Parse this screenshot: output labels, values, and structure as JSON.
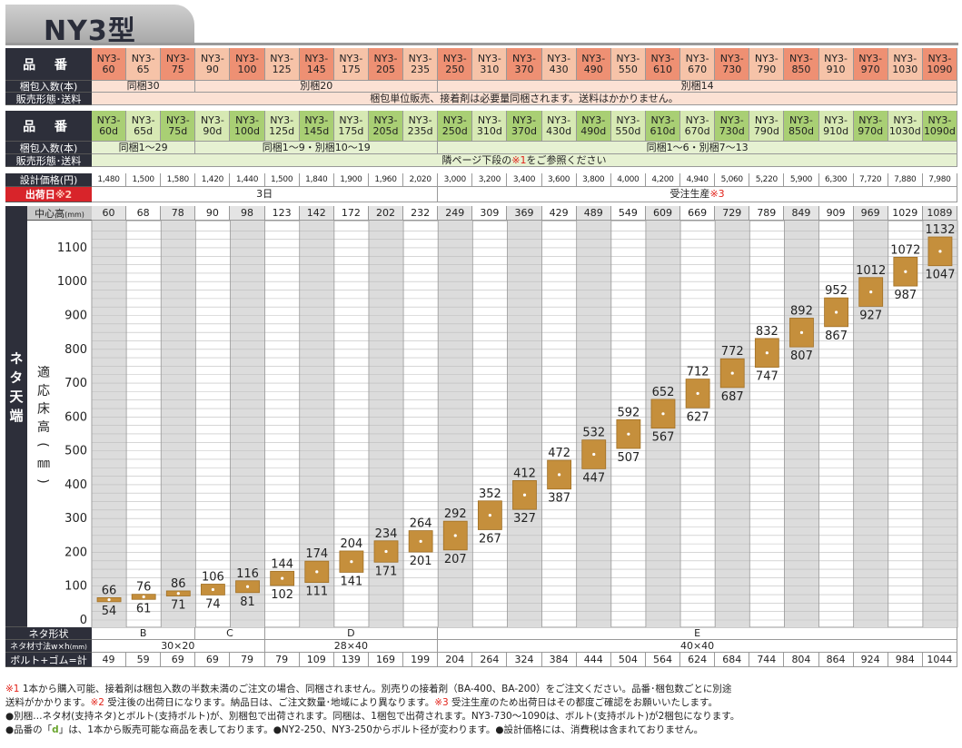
{
  "title": "NY3型",
  "labels": {
    "part_no": "品 番",
    "pack_qty": "梱包入数(本)",
    "sales_form": "販売形態･送料",
    "price": "設計価格(円)",
    "ship_day": "出荷日",
    "ship_day_mark": "※2",
    "center_height": "中心高",
    "center_height_unit": "(mm)",
    "side_label": "ネタ天端",
    "axis_label": "適応床高(㎜)",
    "neta_shape": "ネタ形状",
    "neta_size": "ネタ材寸法w×h",
    "neta_size_unit": "(mm)",
    "bolt_total": "ボルト+ゴム=計"
  },
  "columns": [
    {
      "name1": "NY3-",
      "name2": "60",
      "named": "NY3-60d",
      "hl": true,
      "price": "1,480",
      "ch": "60",
      "bt": "49"
    },
    {
      "name1": "NY3-",
      "name2": "65",
      "named": "NY3-65d",
      "hl": false,
      "price": "1,500",
      "ch": "68",
      "bt": "59"
    },
    {
      "name1": "NY3-",
      "name2": "75",
      "named": "NY3-75d",
      "hl": true,
      "price": "1,580",
      "ch": "78",
      "bt": "69"
    },
    {
      "name1": "NY3-",
      "name2": "90",
      "named": "NY3-90d",
      "hl": false,
      "price": "1,420",
      "ch": "90",
      "bt": "69"
    },
    {
      "name1": "NY3-",
      "name2": "100",
      "named": "NY3-100d",
      "hl": true,
      "price": "1,440",
      "ch": "98",
      "bt": "79"
    },
    {
      "name1": "NY3-",
      "name2": "125",
      "named": "NY3-125d",
      "hl": false,
      "price": "1,500",
      "ch": "123",
      "bt": "79"
    },
    {
      "name1": "NY3-",
      "name2": "145",
      "named": "NY3-145d",
      "hl": true,
      "price": "1,840",
      "ch": "142",
      "bt": "109"
    },
    {
      "name1": "NY3-",
      "name2": "175",
      "named": "NY3-175d",
      "hl": false,
      "price": "1,900",
      "ch": "172",
      "bt": "139"
    },
    {
      "name1": "NY3-",
      "name2": "205",
      "named": "NY3-205d",
      "hl": true,
      "price": "1,960",
      "ch": "202",
      "bt": "169"
    },
    {
      "name1": "NY3-",
      "name2": "235",
      "named": "NY3-235d",
      "hl": false,
      "price": "2,020",
      "ch": "232",
      "bt": "199"
    },
    {
      "name1": "NY3-",
      "name2": "250",
      "named": "NY3-250d",
      "hl": true,
      "price": "3,000",
      "ch": "249",
      "bt": "204"
    },
    {
      "name1": "NY3-",
      "name2": "310",
      "named": "NY3-310d",
      "hl": false,
      "price": "3,200",
      "ch": "309",
      "bt": "264"
    },
    {
      "name1": "NY3-",
      "name2": "370",
      "named": "NY3-370d",
      "hl": true,
      "price": "3,400",
      "ch": "369",
      "bt": "324"
    },
    {
      "name1": "NY3-",
      "name2": "430",
      "named": "NY3-430d",
      "hl": false,
      "price": "3,600",
      "ch": "429",
      "bt": "384"
    },
    {
      "name1": "NY3-",
      "name2": "490",
      "named": "NY3-490d",
      "hl": true,
      "price": "3,800",
      "ch": "489",
      "bt": "444"
    },
    {
      "name1": "NY3-",
      "name2": "550",
      "named": "NY3-550d",
      "hl": false,
      "price": "4,000",
      "ch": "549",
      "bt": "504"
    },
    {
      "name1": "NY3-",
      "name2": "610",
      "named": "NY3-610d",
      "hl": true,
      "price": "4,200",
      "ch": "609",
      "bt": "564"
    },
    {
      "name1": "NY3-",
      "name2": "670",
      "named": "NY3-670d",
      "hl": false,
      "price": "4,940",
      "ch": "669",
      "bt": "624"
    },
    {
      "name1": "NY3-",
      "name2": "730",
      "named": "NY3-730d",
      "hl": true,
      "price": "5,060",
      "ch": "729",
      "bt": "684"
    },
    {
      "name1": "NY3-",
      "name2": "790",
      "named": "NY3-790d",
      "hl": false,
      "price": "5,220",
      "ch": "789",
      "bt": "744"
    },
    {
      "name1": "NY3-",
      "name2": "850",
      "named": "NY3-850d",
      "hl": true,
      "price": "5,900",
      "ch": "849",
      "bt": "804"
    },
    {
      "name1": "NY3-",
      "name2": "910",
      "named": "NY3-910d",
      "hl": false,
      "price": "6,300",
      "ch": "909",
      "bt": "864"
    },
    {
      "name1": "NY3-",
      "name2": "970",
      "named": "NY3-970d",
      "hl": true,
      "price": "7,720",
      "ch": "969",
      "bt": "924"
    },
    {
      "name1": "NY3-",
      "name2": "1030",
      "named": "NY3-1030d",
      "hl": false,
      "price": "7,880",
      "ch": "1029",
      "bt": "984"
    },
    {
      "name1": "NY3-",
      "name2": "1090",
      "named": "NY3-1090d",
      "hl": true,
      "price": "7,980",
      "ch": "1089",
      "bt": "1044"
    }
  ],
  "group_rows": {
    "pack1": [
      {
        "span": 3,
        "text": "同梱30"
      },
      {
        "span": 7,
        "text": "別梱20"
      },
      {
        "span": 15,
        "text": "別梱14"
      }
    ],
    "sales1": "梱包単位販売、接着剤は必要量同梱されます。送料はかかりません。",
    "pack2": [
      {
        "span": 3,
        "text": "同梱1～29"
      },
      {
        "span": 7,
        "text": "同梱1～9・別梱10～19"
      },
      {
        "span": 15,
        "text": "同梱1～6・別梱7～13"
      }
    ],
    "sales2_pre": "隣ページ下段の",
    "sales2_mark": "※1",
    "sales2_post": "をご参照ください",
    "ship": [
      {
        "span": 10,
        "text": "3日",
        "mark": ""
      },
      {
        "span": 15,
        "text": "受注生産",
        "mark": "※3"
      }
    ],
    "neta_shape": [
      {
        "span": 3,
        "text": "B"
      },
      {
        "span": 2,
        "text": "C"
      },
      {
        "span": 5,
        "text": "D"
      },
      {
        "span": 15,
        "text": "E"
      }
    ],
    "neta_size": [
      {
        "span": 5,
        "text": "30×20"
      },
      {
        "span": 5,
        "text": "28×40"
      },
      {
        "span": 15,
        "text": "40×40"
      }
    ]
  },
  "chart_data": {
    "type": "range-bar",
    "ylabel": "適応床高(㎜)",
    "ylim": [
      0,
      1150
    ],
    "yticks": [
      0,
      100,
      200,
      300,
      400,
      500,
      600,
      700,
      800,
      900,
      1000,
      1100
    ],
    "ranges": [
      {
        "min": 54,
        "max": 66
      },
      {
        "min": 61,
        "max": 76
      },
      {
        "min": 71,
        "max": 86
      },
      {
        "min": 74,
        "max": 106
      },
      {
        "min": 81,
        "max": 116
      },
      {
        "min": 102,
        "max": 144
      },
      {
        "min": 111,
        "max": 174
      },
      {
        "min": 141,
        "max": 204
      },
      {
        "min": 171,
        "max": 234
      },
      {
        "min": 201,
        "max": 264
      },
      {
        "min": 207,
        "max": 292
      },
      {
        "min": 267,
        "max": 352
      },
      {
        "min": 327,
        "max": 412
      },
      {
        "min": 387,
        "max": 472
      },
      {
        "min": 447,
        "max": 532
      },
      {
        "min": 507,
        "max": 592
      },
      {
        "min": 567,
        "max": 652
      },
      {
        "min": 627,
        "max": 712
      },
      {
        "min": 687,
        "max": 772
      },
      {
        "min": 747,
        "max": 832
      },
      {
        "min": 807,
        "max": 892
      },
      {
        "min": 867,
        "max": 952
      },
      {
        "min": 927,
        "max": 1012
      },
      {
        "min": 987,
        "max": 1072
      },
      {
        "min": 1047,
        "max": 1132
      }
    ],
    "bar_color": "#c58f3c"
  },
  "notes": {
    "l1_m1": "※1",
    "l1_t1": " 1本から購入可能、接着剤は梱包入数の半数未満のご注文の場合、同梱されません。別売りの接着剤（BA-400、BA-200）をご注文ください。品番･梱包数ごとに別途",
    "l2_t1": "送料がかかります。",
    "l2_m2": "※2",
    "l2_t2": " 受注後の出荷日になります。納品日は、ご注文数量･地域により異なります。",
    "l2_m3": "※3",
    "l2_t3": " 受注生産のため出荷日はその都度ご確認をお願いいたします。",
    "l3": "●別梱…ネタ材(支持ネタ)とボルト(支持ボルト)が、別梱包で出荷されます。同梱は、1梱包で出荷されます。NY3-730～1090は、ボルト(支持ボルト)が2梱包になります。",
    "l4_a": "●品番の「",
    "l4_d": "d",
    "l4_b": "」は、1本から販売可能な商品を表しております。●NY2-250、NY3-250からボルト径が変わります。●設計価格には、消費税は含まれておりません。"
  }
}
